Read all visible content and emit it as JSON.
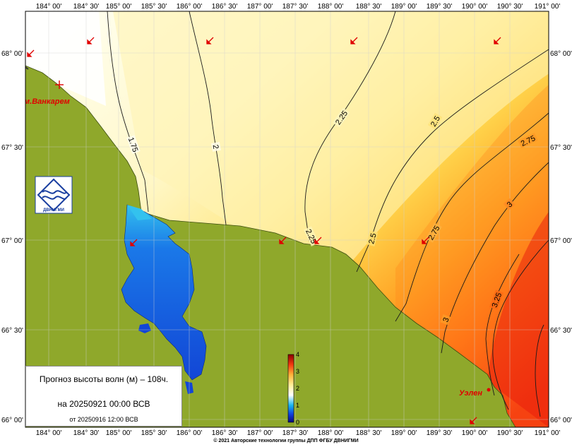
{
  "map": {
    "lon_labels": [
      "184° 00'",
      "184° 30'",
      "185° 00'",
      "185° 30'",
      "186° 00'",
      "186° 30'",
      "187° 00'",
      "187° 30'",
      "188° 00'",
      "188° 30'",
      "189° 00'",
      "189° 30'",
      "190° 00'",
      "190° 30'",
      "191° 00'"
    ],
    "lat_labels": [
      "68° 00'",
      "67° 30'",
      "67° 00'",
      "66° 30'",
      "66° 00'"
    ],
    "isolines": [
      "1.75",
      "2",
      "2.25",
      "2.25",
      "2.5",
      "2.5",
      "2.75",
      "2.75",
      "3",
      "3",
      "3.25"
    ],
    "places": [
      "м.Ванкарем",
      "Уэлен"
    ],
    "colorbar": {
      "ticks": [
        "0",
        "1",
        "2",
        "3",
        "4"
      ],
      "min": 0,
      "max": 4
    },
    "colors": {
      "land": "#8fa82b",
      "arrow": "#e00000",
      "lagoon": "#1565e0"
    }
  },
  "title": {
    "line1": "Прогноз высоты волн (м) – 108ч.",
    "line2": "на 20250921 00:00 ВСВ",
    "line3": "от 20250916 12:00 ВСВ"
  },
  "logo": {
    "text": "ДВНИГМИ"
  },
  "copyright": "© 2021 Авторские технологии группы ДПП ФГБУ ДВНИГМИ"
}
